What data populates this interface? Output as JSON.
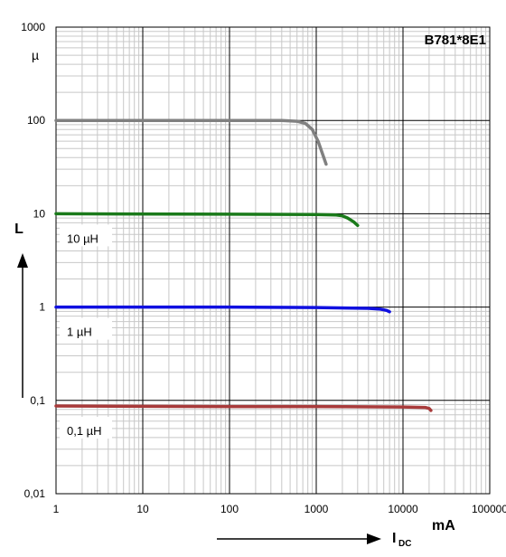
{
  "chart_data": {
    "type": "line",
    "title": "B781*8E1",
    "x_scale": "log",
    "y_scale": "log",
    "xlim": [
      1,
      100000
    ],
    "ylim": [
      0.01,
      1000
    ],
    "x_ticks": [
      "1",
      "10",
      "100",
      "1000",
      "10000",
      "100000"
    ],
    "y_ticks": [
      "0,01",
      "0,1",
      "1",
      "10",
      "100",
      "1000"
    ],
    "xlabel_main": "I",
    "xlabel_sub": "DC",
    "xunit": "mA",
    "ylabel": "L",
    "yunit": "µ",
    "grid": true,
    "series": [
      {
        "color": "#808080",
        "x": [
          1,
          100,
          400,
          600,
          750,
          900,
          1050,
          1200,
          1300
        ],
        "y": [
          100,
          100,
          100,
          98,
          93,
          80,
          60,
          42,
          34
        ]
      },
      {
        "name": "10 µH",
        "color": "#1a7a1a",
        "x": [
          1,
          100,
          1000,
          1700,
          2000,
          2300,
          2700,
          3000
        ],
        "y": [
          10,
          9.9,
          9.8,
          9.7,
          9.5,
          9.0,
          8.2,
          7.5
        ]
      },
      {
        "name": "1 µH",
        "color": "#1010e0",
        "x": [
          1,
          100,
          1000,
          4000,
          5500,
          6500,
          7000
        ],
        "y": [
          1.0,
          1.0,
          0.99,
          0.97,
          0.95,
          0.92,
          0.89
        ]
      },
      {
        "name": "0,1 µH",
        "color": "#a83a3a",
        "x": [
          1,
          100,
          1000,
          10000,
          18000,
          20000,
          21000
        ],
        "y": [
          0.087,
          0.086,
          0.086,
          0.085,
          0.084,
          0.082,
          0.078
        ]
      }
    ]
  }
}
